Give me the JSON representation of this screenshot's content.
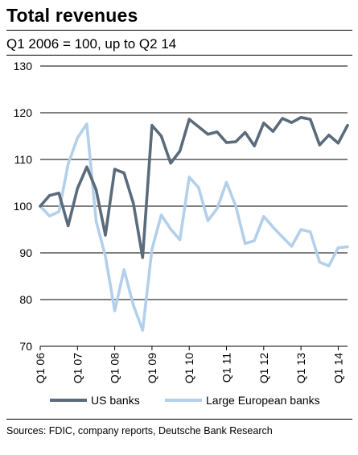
{
  "chart_data": {
    "type": "line",
    "title": "Total revenues",
    "subtitle": "Q1 2006 = 100, up to Q2 14",
    "ylim": [
      70,
      130
    ],
    "yticks": [
      70,
      80,
      90,
      100,
      110,
      120,
      130
    ],
    "grid": true,
    "xlim": [
      0,
      33
    ],
    "x_tick_labels": [
      {
        "label": "Q1 06",
        "index": 0
      },
      {
        "label": "Q1 07",
        "index": 4
      },
      {
        "label": "Q1 08",
        "index": 8
      },
      {
        "label": "Q1 09",
        "index": 12
      },
      {
        "label": "Q1 10",
        "index": 16
      },
      {
        "label": "Q1 11",
        "index": 20
      },
      {
        "label": "Q1 12",
        "index": 24
      },
      {
        "label": "Q1 13",
        "index": 28
      },
      {
        "label": "Q1 14",
        "index": 32
      }
    ],
    "series": [
      {
        "name": "US banks",
        "color": "#5a6b7b",
        "values": [
          100,
          102.3,
          102.8,
          95.8,
          103.8,
          108.4,
          103.5,
          93.8,
          107.9,
          107.1,
          100.6,
          89.0,
          117.3,
          115.0,
          109.2,
          111.8,
          118.6,
          117.0,
          115.4,
          115.9,
          113.6,
          113.8,
          115.8,
          112.9,
          117.8,
          116.0,
          118.8,
          117.9,
          119.0,
          118.6,
          113.1,
          115.2,
          113.5,
          117.3
        ]
      },
      {
        "name": "Large European banks",
        "color": "#b3d0ea",
        "values": [
          100,
          97.9,
          98.8,
          109.0,
          114.6,
          117.6,
          96.8,
          89.3,
          77.6,
          86.4,
          78.8,
          73.4,
          90.8,
          98.1,
          95.1,
          92.8,
          106.2,
          104.0,
          96.9,
          99.5,
          105.1,
          100.0,
          92.0,
          92.6,
          97.8,
          95.5,
          93.4,
          91.4,
          95.0,
          94.5,
          88.0,
          87.2,
          91.1,
          91.3
        ]
      }
    ],
    "legend_position": "bottom"
  },
  "source_text": "Sources: FDIC, company reports, Deutsche Bank Research"
}
